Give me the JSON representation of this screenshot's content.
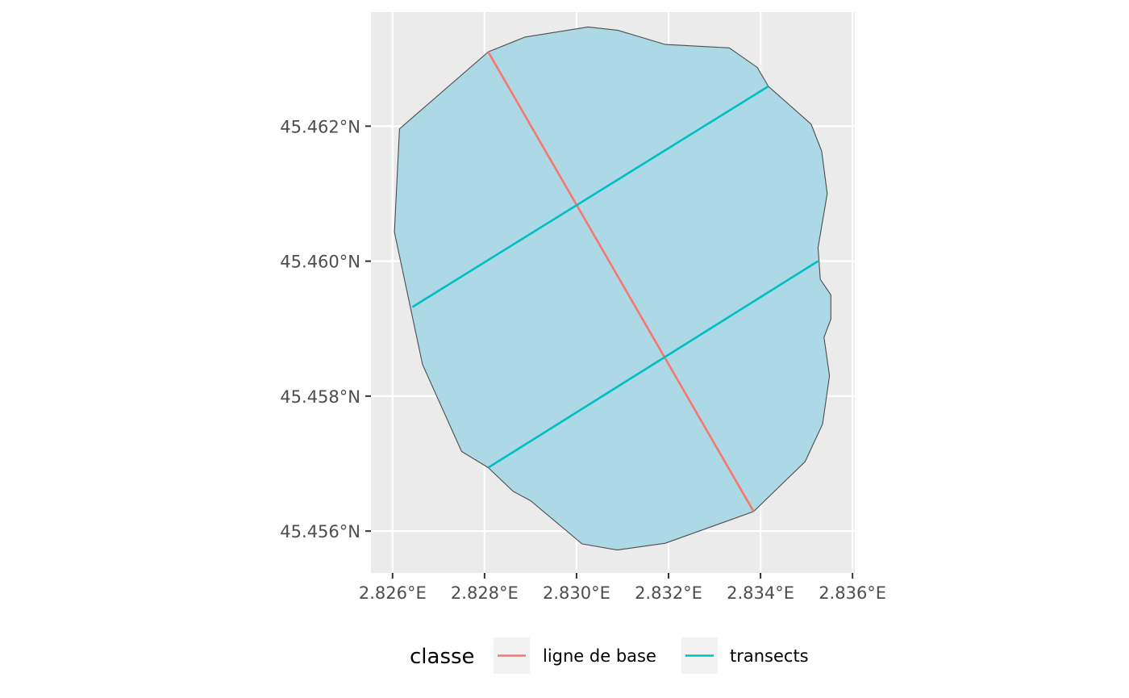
{
  "chart_data": {
    "type": "map",
    "title": "",
    "xlabel": "",
    "ylabel": "",
    "x_ticks": [
      {
        "value": 2.826,
        "label": "2.826°E"
      },
      {
        "value": 2.828,
        "label": "2.828°E"
      },
      {
        "value": 2.83,
        "label": "2.830°E"
      },
      {
        "value": 2.832,
        "label": "2.832°E"
      },
      {
        "value": 2.834,
        "label": "2.834°E"
      },
      {
        "value": 2.836,
        "label": "2.836°E"
      }
    ],
    "y_ticks": [
      {
        "value": 45.462,
        "label": "45.462°N"
      },
      {
        "value": 45.46,
        "label": "45.460°N"
      },
      {
        "value": 45.458,
        "label": "45.458°N"
      },
      {
        "value": 45.456,
        "label": "45.456°N"
      }
    ],
    "xlim": [
      2.82553,
      2.83605
    ],
    "ylim": [
      45.45538,
      45.46369
    ],
    "grid": true,
    "colors": {
      "panel_background": "#ebebeb",
      "grid": "#ffffff",
      "polygon_fill": "#add8e6",
      "polygon_stroke": "#4d4d4d",
      "ligne_de_base": "#f8766d",
      "transects": "#00bfc4"
    },
    "polygon": [
      [
        2.82808,
        45.4631
      ],
      [
        2.82888,
        45.46332
      ],
      [
        2.83025,
        45.46347
      ],
      [
        2.8309,
        45.46342
      ],
      [
        2.83193,
        45.46321
      ],
      [
        2.83332,
        45.46316
      ],
      [
        2.83393,
        45.46287
      ],
      [
        2.83417,
        45.46259
      ],
      [
        2.8351,
        45.46203
      ],
      [
        2.83533,
        45.46163
      ],
      [
        2.83545,
        45.461
      ],
      [
        2.83525,
        45.4602
      ],
      [
        2.8353,
        45.45973
      ],
      [
        2.83553,
        45.4595
      ],
      [
        2.83553,
        45.45914
      ],
      [
        2.83538,
        45.45887
      ],
      [
        2.8355,
        45.4583
      ],
      [
        2.83535,
        45.45759
      ],
      [
        2.83497,
        45.45703
      ],
      [
        2.83385,
        45.45629
      ],
      [
        2.83193,
        45.45582
      ],
      [
        2.83089,
        45.45572
      ],
      [
        2.83012,
        45.45581
      ],
      [
        2.829,
        45.45645
      ],
      [
        2.82862,
        45.45659
      ],
      [
        2.82808,
        45.45694
      ],
      [
        2.8275,
        45.45718
      ],
      [
        2.82665,
        45.45847
      ],
      [
        2.82604,
        45.46043
      ],
      [
        2.82615,
        45.46196
      ],
      [
        2.82808,
        45.4631
      ]
    ],
    "series": [
      {
        "name": "ligne de base",
        "lines": [
          [
            [
              2.82808,
              45.4631
            ],
            [
              2.83385,
              45.45629
            ]
          ]
        ]
      },
      {
        "name": "transects",
        "lines": [
          [
            [
              2.82643,
              45.45932
            ],
            [
              2.83417,
              45.46259
            ]
          ],
          [
            [
              2.82808,
              45.45694
            ],
            [
              2.83525,
              45.46
            ]
          ]
        ]
      }
    ],
    "legend": {
      "title": "classe",
      "position": "bottom",
      "items": [
        {
          "label": "ligne de base",
          "color": "#f8766d"
        },
        {
          "label": "transects",
          "color": "#00bfc4"
        }
      ]
    }
  }
}
